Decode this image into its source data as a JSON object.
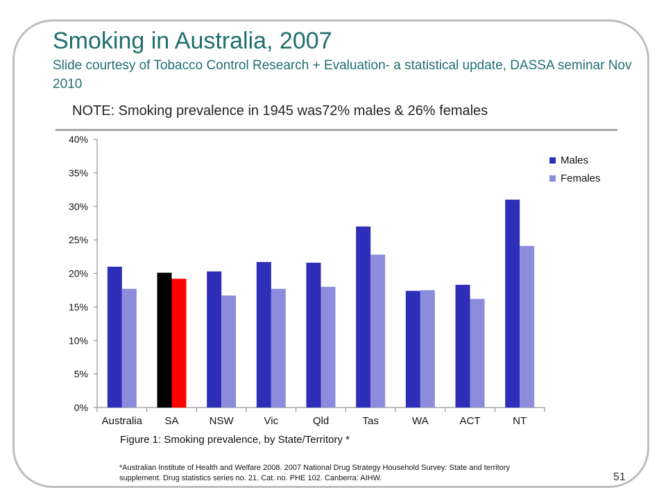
{
  "slide": {
    "title": "Smoking in Australia, 2007",
    "subtitle": "Slide courtesy of Tobacco Control Research + Evaluation- a statistical update, DASSA seminar Nov 2010",
    "note": "NOTE: Smoking prevalence in 1945 was72% males & 26% females",
    "caption": "Figure 1: Smoking prevalence, by State/Territory *",
    "footnote": "*Australian Institute of Health and Welfare 2008. 2007 National Drug Strategy Household Survey: State and territory supplement. Drug statistics series no. 21. Cat. no. PHE 102. Canberra: AIHW.",
    "page_number": "51"
  },
  "chart_data": {
    "type": "bar",
    "categories": [
      "Australia",
      "SA",
      "NSW",
      "Vic",
      "Qld",
      "Tas",
      "WA",
      "ACT",
      "NT"
    ],
    "series": [
      {
        "name": "Males",
        "values": [
          21.0,
          20.1,
          20.3,
          21.7,
          21.6,
          27.0,
          17.4,
          18.3,
          31.0
        ],
        "color": "#2e2eb8"
      },
      {
        "name": "Females",
        "values": [
          17.7,
          19.2,
          16.7,
          17.7,
          18.0,
          22.8,
          17.5,
          16.2,
          24.1
        ],
        "color": "#8c8cdc"
      }
    ],
    "highlight": {
      "category": "SA",
      "colors": {
        "Males": "#000000",
        "Females": "#ff0000"
      }
    },
    "yticks": [
      "0%",
      "5%",
      "10%",
      "15%",
      "20%",
      "25%",
      "30%",
      "35%",
      "40%"
    ],
    "ylim": [
      0,
      40
    ],
    "ystep": 5,
    "grid": false,
    "legend_position": "top-right"
  }
}
